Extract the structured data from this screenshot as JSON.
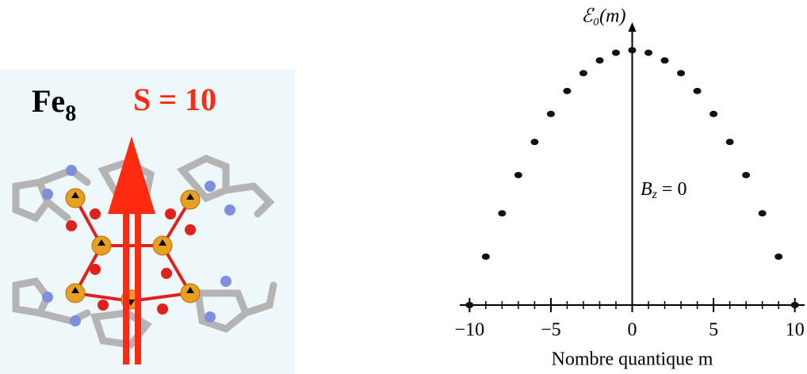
{
  "figure_labels": {
    "molecule": "Fe",
    "molecule_sub": "8",
    "spin": "S = 10"
  },
  "chart_data": {
    "type": "scatter",
    "y_label": "ℰ₀(m)",
    "x_label": "Nombre quantique m",
    "annotation": {
      "main": "B",
      "sub": "z",
      "rest": " = 0"
    },
    "x": [
      -10,
      -9,
      -8,
      -7,
      -6,
      -5,
      -4,
      -3,
      -2,
      -1,
      0,
      1,
      2,
      3,
      4,
      5,
      6,
      7,
      8,
      9,
      10
    ],
    "y": [
      -100,
      -81,
      -64,
      -49,
      -36,
      -25,
      -16,
      -9,
      -4,
      -1,
      0,
      -1,
      -4,
      -9,
      -16,
      -25,
      -36,
      -49,
      -64,
      -81,
      -100
    ],
    "color": "#111111",
    "xlim": [
      -10.6,
      10.6
    ],
    "ylim": [
      -100,
      11
    ],
    "xticks": [
      {
        "value": -10,
        "label": "−10"
      },
      {
        "value": -5,
        "label": "−5"
      },
      0,
      5,
      10
    ],
    "xticks_minor": [
      -10,
      -9,
      -8,
      -7,
      -6,
      -5,
      -4,
      -3,
      -2,
      -1,
      0,
      1,
      2,
      3,
      4,
      5,
      6,
      7,
      8,
      9,
      10
    ]
  }
}
